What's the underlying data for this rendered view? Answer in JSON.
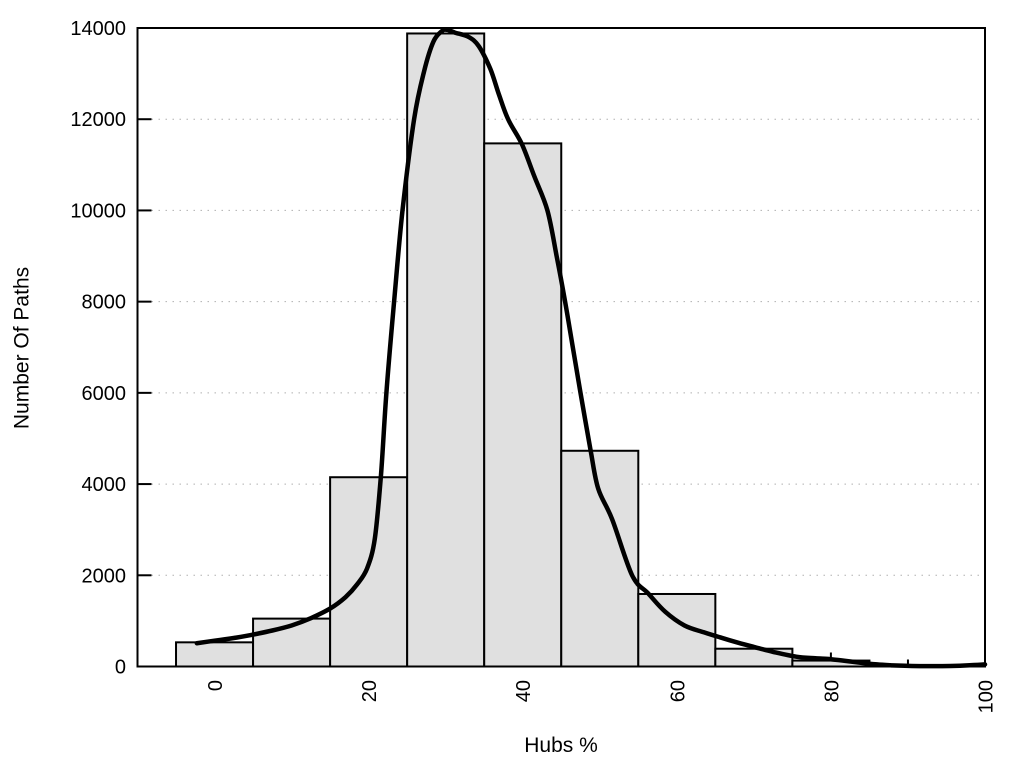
{
  "chart_data": {
    "type": "bar",
    "subtype": "histogram_with_density_curve",
    "title": "",
    "xlabel": "Hubs %",
    "ylabel": "Number Of Paths",
    "xlim": [
      -10,
      100
    ],
    "ylim": [
      0,
      14000
    ],
    "x_major_ticks": [
      0,
      20,
      40,
      60,
      80,
      100
    ],
    "x_minor_ticks": [
      10,
      30,
      50,
      70,
      90
    ],
    "y_ticks": [
      0,
      2000,
      4000,
      6000,
      8000,
      10000,
      12000,
      14000
    ],
    "grid": {
      "horizontal": "dotted",
      "vertical": "none"
    },
    "legend": "none",
    "x_tick_label_rotation": -90,
    "bins": {
      "width": 10,
      "edges": [
        -5,
        5,
        15,
        25,
        35,
        45,
        55,
        65,
        75,
        85,
        95
      ],
      "counts": [
        530,
        1050,
        4150,
        13880,
        11470,
        4730,
        1590,
        390,
        130,
        0
      ]
    },
    "density_curve": {
      "points": [
        [
          -2.3,
          510
        ],
        [
          0,
          565
        ],
        [
          2.5,
          625
        ],
        [
          5,
          700
        ],
        [
          7.5,
          790
        ],
        [
          10,
          900
        ],
        [
          12.5,
          1060
        ],
        [
          15,
          1270
        ],
        [
          17,
          1520
        ],
        [
          18.5,
          1800
        ],
        [
          19.8,
          2150
        ],
        [
          20.8,
          2800
        ],
        [
          21.6,
          4200
        ],
        [
          22.3,
          6000
        ],
        [
          23.3,
          8000
        ],
        [
          24.4,
          10000
        ],
        [
          25.9,
          12000
        ],
        [
          27.2,
          13050
        ],
        [
          28.4,
          13700
        ],
        [
          29.5,
          13930
        ],
        [
          30.2,
          13960
        ],
        [
          31.2,
          13900
        ],
        [
          33,
          13800
        ],
        [
          34.3,
          13600
        ],
        [
          35.8,
          13100
        ],
        [
          36.9,
          12550
        ],
        [
          38.1,
          12000
        ],
        [
          39.9,
          11450
        ],
        [
          41.5,
          10750
        ],
        [
          43.2,
          10000
        ],
        [
          44.4,
          9000
        ],
        [
          45.5,
          8000
        ],
        [
          46.5,
          7000
        ],
        [
          47.5,
          6000
        ],
        [
          48.8,
          4750
        ],
        [
          49.8,
          3900
        ],
        [
          51.6,
          3230
        ],
        [
          54.2,
          2000
        ],
        [
          56.3,
          1600
        ],
        [
          58.5,
          1200
        ],
        [
          61,
          900
        ],
        [
          63.5,
          750
        ],
        [
          65.6,
          640
        ],
        [
          68,
          520
        ],
        [
          70,
          430
        ],
        [
          72.5,
          320
        ],
        [
          75.5,
          215
        ],
        [
          78,
          180
        ],
        [
          80,
          160
        ],
        [
          82,
          120
        ],
        [
          84,
          80
        ],
        [
          86,
          45
        ],
        [
          88,
          25
        ],
        [
          90.5,
          12
        ],
        [
          93,
          8
        ],
        [
          95.5,
          12
        ],
        [
          98,
          28
        ],
        [
          100,
          45
        ]
      ]
    },
    "colors": {
      "background": "#ffffff",
      "bar_fill": "#e0e0e0",
      "bar_stroke": "#000000",
      "curve": "#000000",
      "frame": "#000000",
      "grid": "#b0b0b0",
      "text": "#000000"
    }
  }
}
